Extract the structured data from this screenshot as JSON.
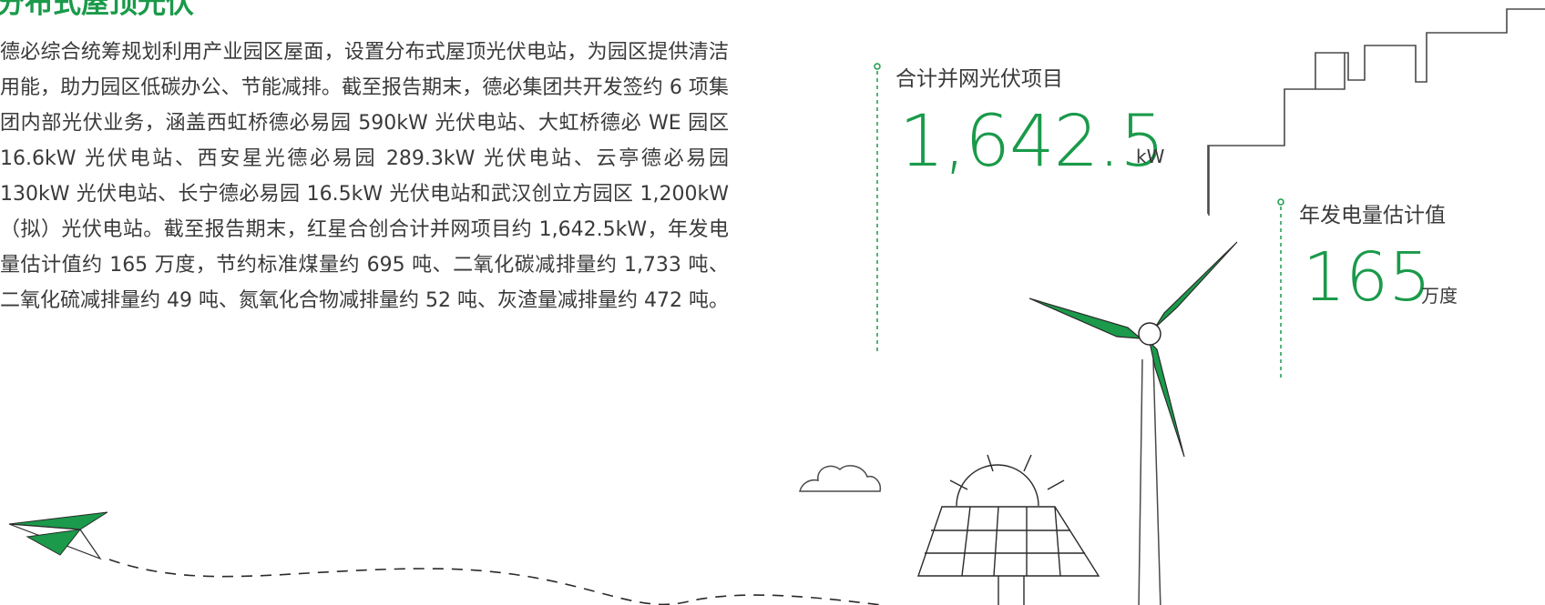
{
  "section": {
    "title": "分布式屋顶光伏",
    "body": "德必综合统筹规划利用产业园区屋面，设置分布式屋顶光伏电站，为园区提供清洁用能，助力园区低碳办公、节能减排。截至报告期末，德必集团共开发签约 6 项集团内部光伏业务，涵盖西虹桥德必易园 590kW 光伏电站、大虹桥德必 WE 园区 16.6kW 光伏电站、西安星光德必易园 289.3kW 光伏电站、云亭德必易园 130kW 光伏电站、长宁德必易园 16.5kW 光伏电站和武汉创立方园区 1,200kW（拟）光伏电站。截至报告期末，红星合创合计并网项目约 1,642.5kW，年发电量估计值约 165 万度，节约标准煤量约 695 吨、二氧化碳减排量约 1,733 吨、二氧化硫减排量约 49 吨、氮氧化合物减排量约 52 吨、灰渣量减排量约 472 吨。"
  },
  "stats": [
    {
      "label": "合计并网光伏项目",
      "value": "1,642.5",
      "unit": "kW"
    },
    {
      "label": "年发电量估计值",
      "value": "165",
      "unit": "万度"
    }
  ],
  "colors": {
    "accent": "#1a9a4a",
    "text": "#3a3a3a",
    "line": "#4a4a4a"
  },
  "illustrations": [
    "paper-plane-icon",
    "cloud-icon",
    "wind-turbine-icon",
    "solar-panel-icon",
    "stair-line-graphic"
  ]
}
